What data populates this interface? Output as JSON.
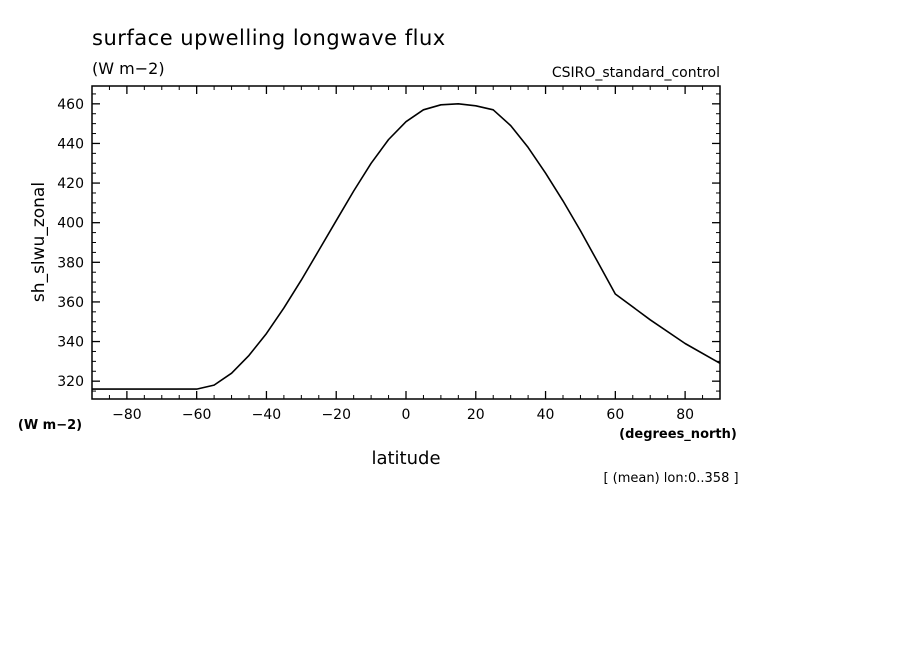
{
  "chart_data": {
    "type": "line",
    "title": "surface upwelling longwave flux",
    "units": "(W m−2)",
    "source_label": "CSIRO_standard_control",
    "ylabel": "sh_slwu_zonal",
    "y_units": "(W m−2)",
    "xlabel": "latitude",
    "x_units": "(degrees_north)",
    "footnote": "[ (mean) lon:0..358 ]",
    "xlim": [
      -90,
      90
    ],
    "ylim": [
      311,
      469
    ],
    "x_ticks": [
      -80,
      -60,
      -40,
      -20,
      0,
      20,
      40,
      60,
      80
    ],
    "x_tick_labels": [
      "−80",
      "−60",
      "−40",
      "−20",
      "0",
      "20",
      "40",
      "60",
      "80"
    ],
    "y_ticks": [
      320,
      340,
      360,
      380,
      400,
      420,
      440,
      460
    ],
    "y_tick_labels": [
      "320",
      "340",
      "360",
      "380",
      "400",
      "420",
      "440",
      "460"
    ],
    "series": [
      {
        "name": "sh_slwu_zonal",
        "x": [
          -90,
          -80,
          -70,
          -60,
          -55,
          -50,
          -45,
          -40,
          -35,
          -30,
          -25,
          -20,
          -15,
          -10,
          -5,
          0,
          5,
          10,
          15,
          20,
          25,
          30,
          35,
          40,
          45,
          50,
          55,
          60,
          70,
          80,
          90
        ],
        "y": [
          316,
          316,
          316,
          316,
          318,
          324,
          333,
          344,
          357,
          371,
          386,
          401,
          416,
          430,
          442,
          451,
          457,
          459.5,
          460,
          459,
          457,
          449,
          438,
          425,
          411,
          396,
          380,
          364,
          351,
          339,
          329
        ]
      }
    ]
  }
}
